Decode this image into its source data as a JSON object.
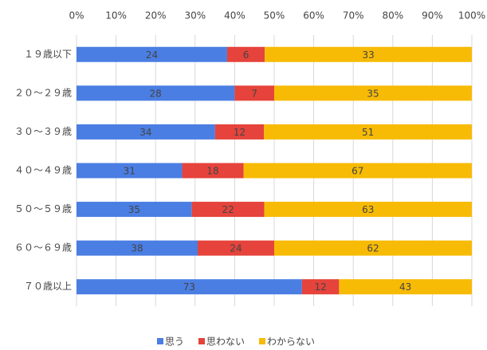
{
  "chart_data": {
    "type": "stacked-bar-percent",
    "categories": [
      "１９歳以下",
      "２０～２９歳",
      "３０～３９歳",
      "４０～４９歳",
      "５０～５９歳",
      "６０～６９歳",
      "７０歳以上"
    ],
    "series": [
      {
        "name": "思う",
        "color": "#4a7ee3",
        "values": [
          24,
          28,
          34,
          31,
          35,
          38,
          73
        ]
      },
      {
        "name": "思わない",
        "color": "#e5433b",
        "values": [
          6,
          7,
          12,
          18,
          22,
          24,
          12
        ]
      },
      {
        "name": "わからない",
        "color": "#f7bb05",
        "values": [
          33,
          35,
          51,
          67,
          63,
          62,
          43
        ]
      }
    ],
    "xlim": [
      0,
      100
    ],
    "xticks": [
      {
        "value": 0,
        "label": "0%"
      },
      {
        "value": 10,
        "label": "10%"
      },
      {
        "value": 20,
        "label": "20%"
      },
      {
        "value": 30,
        "label": "30%"
      },
      {
        "value": 40,
        "label": "40%"
      },
      {
        "value": 50,
        "label": "50%"
      },
      {
        "value": 60,
        "label": "60%"
      },
      {
        "value": 70,
        "label": "70%"
      },
      {
        "value": 80,
        "label": "80%"
      },
      {
        "value": 90,
        "label": "90%"
      },
      {
        "value": 100,
        "label": "100%"
      }
    ],
    "grid": true,
    "legend": "bottom"
  }
}
